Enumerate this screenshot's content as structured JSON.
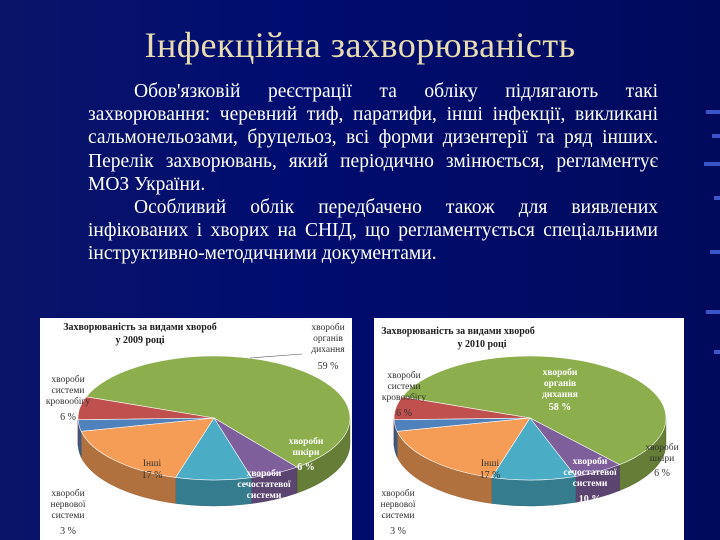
{
  "slide": {
    "title": "Інфекційна захворюваність",
    "paragraph1": "Обов'язковій реєстрації та обліку підлягають такі захворювання: черевний тиф, паратифи, інші інфекції, викликані сальмонельозами, бруцельоз, всі форми дизентерії та ряд інших. Перелік захворювань, який періодично змінюється, регламентує МОЗ України.",
    "paragraph2": "Особливий облік передбачено також для виявлених інфікованих і хворих на СНІД, що регламентується спеціальними інструктивно-методичними документами."
  },
  "colors": {
    "background": "#000d70",
    "title": "#e8dcb0",
    "respiratory": "#8cae4c",
    "circulatory": "#c0504d",
    "nervous": "#4f81bd",
    "other": "#f59d56",
    "digestive": "#4bacc6",
    "skin": "#7e5f9c"
  },
  "chart_data": [
    {
      "type": "pie",
      "title": "Захворюваність за видами хвороб у 2009 році",
      "slices": [
        {
          "name": "хвороби органів дихання",
          "value": 59,
          "label": "59 %",
          "color": "#8cae4c"
        },
        {
          "name": "хвороби шкіри",
          "value": 6,
          "label": "6 %",
          "color": "#7e5f9c"
        },
        {
          "name": "хвороби сечостатевої системи",
          "value": 9,
          "label": "9 %",
          "color": "#4bacc6"
        },
        {
          "name": "Інші",
          "value": 17,
          "label": "17 %",
          "color": "#f59d56"
        },
        {
          "name": "хвороби нервової системи",
          "value": 3,
          "label": "3 %",
          "color": "#4f81bd"
        },
        {
          "name": "хвороби системи кровообігу",
          "value": 6,
          "label": "6 %",
          "color": "#c0504d"
        }
      ]
    },
    {
      "type": "pie",
      "title": "Захворюваність за видами хвороб у 2010 році",
      "slices": [
        {
          "name": "хвороби органів дихання",
          "value": 58,
          "label": "58 %",
          "color": "#8cae4c"
        },
        {
          "name": "хвороби шкіри",
          "value": 6,
          "label": "6 %",
          "color": "#7e5f9c"
        },
        {
          "name": "хвороби сечостатевої системи",
          "value": 10,
          "label": "10 %",
          "color": "#4bacc6"
        },
        {
          "name": "Інші",
          "value": 17,
          "label": "17 %",
          "color": "#f59d56"
        },
        {
          "name": "хвороби нервової системи",
          "value": 3,
          "label": "3 %",
          "color": "#4f81bd"
        },
        {
          "name": "хвороби системи кровообігу",
          "value": 6,
          "label": "6 %",
          "color": "#c0504d"
        }
      ]
    }
  ]
}
